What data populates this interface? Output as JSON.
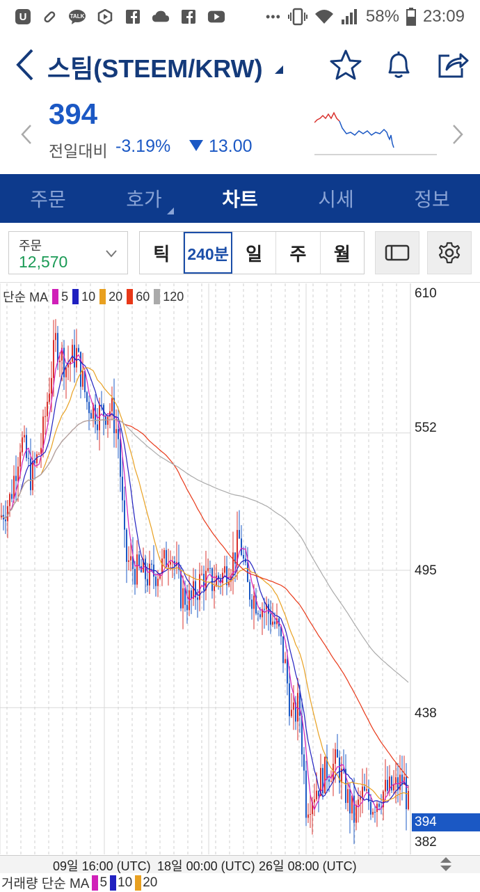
{
  "status_bar": {
    "icons": [
      "u-plus-icon",
      "pill-icon",
      "talk-icon",
      "play-icon",
      "facebook-icon",
      "cloud-icon",
      "facebook-icon",
      "youtube-icon"
    ],
    "talk_label": "TALK",
    "battery": "58%",
    "time": "23:09"
  },
  "header": {
    "title": "스팀(STEEM/KRW)"
  },
  "price": {
    "current": "394",
    "change_label": "전일대비",
    "change_pct": "-3.19%",
    "change_value": "13.00",
    "colors": {
      "down": "#1b58c4",
      "up": "#d9302c"
    }
  },
  "tabs": [
    {
      "label": "주문"
    },
    {
      "label": "호가"
    },
    {
      "label": "차트"
    },
    {
      "label": "시세"
    },
    {
      "label": "정보"
    }
  ],
  "toolbar": {
    "order_label": "주문",
    "order_value": "12,570",
    "periods": [
      "틱",
      "240분",
      "일",
      "주",
      "월"
    ],
    "selected_period": "240분"
  },
  "chart_data": {
    "type": "candlestick",
    "legend_label": "단순 MA",
    "ma_series": [
      {
        "name": "5",
        "color": "#d020b8"
      },
      {
        "name": "10",
        "color": "#2020c0"
      },
      {
        "name": "20",
        "color": "#e8a020"
      },
      {
        "name": "60",
        "color": "#e83818"
      },
      {
        "name": "120",
        "color": "#aaaaaa"
      }
    ],
    "y_ticks": [
      "610",
      "552",
      "495",
      "438",
      "382"
    ],
    "current_price": "394",
    "x_ticks": [
      "09일 16:00 (UTC)",
      "18일 00:00 (UTC)",
      "26일 08:00 (UTC)"
    ],
    "ylim": [
      382,
      610
    ],
    "up_color": "#d9302c",
    "down_color": "#1b58c4"
  },
  "volume": {
    "legend_label": "거래량 단순 MA",
    "ma_series": [
      {
        "name": "5",
        "color": "#d020b8"
      },
      {
        "name": "10",
        "color": "#2020c0"
      },
      {
        "name": "20",
        "color": "#e8a020"
      }
    ]
  }
}
